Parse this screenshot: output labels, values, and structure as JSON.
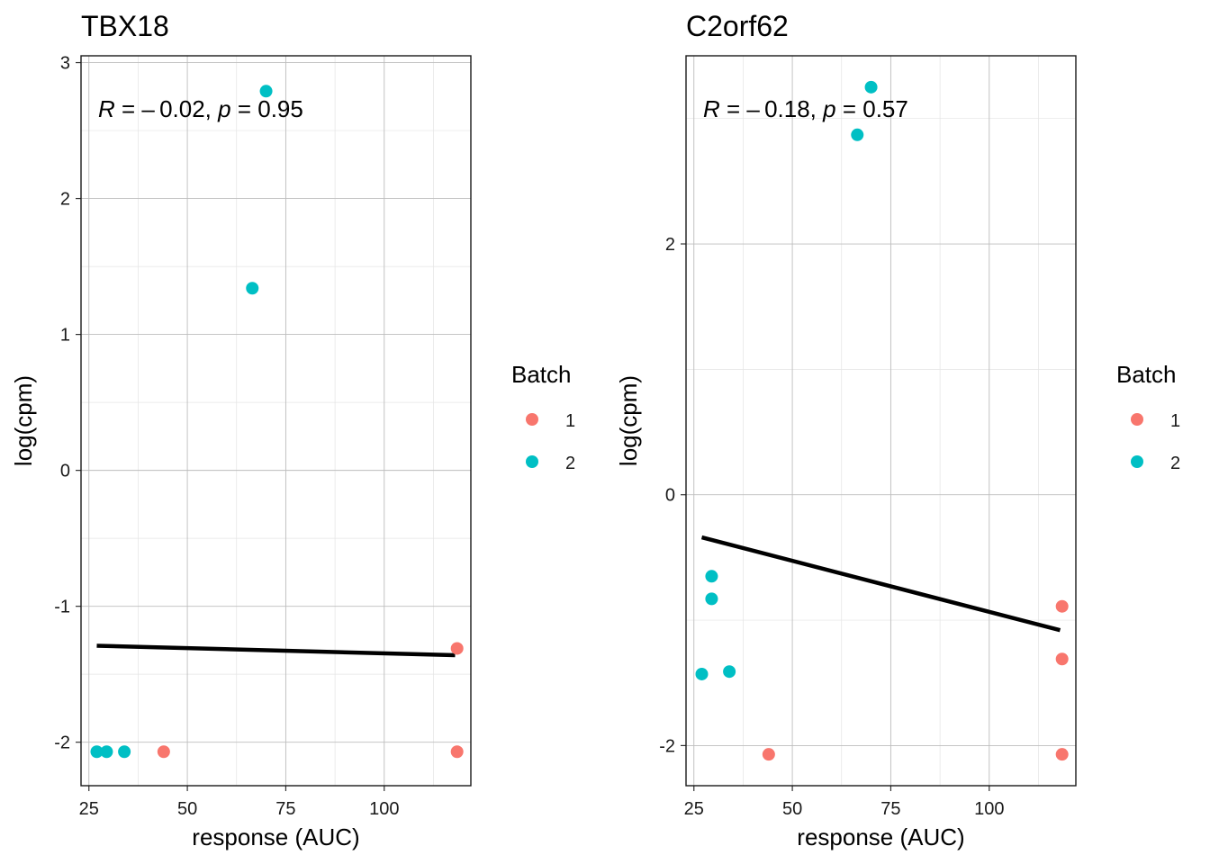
{
  "figure": {
    "colors": {
      "batch_1": "#F8766D",
      "batch_2": "#00BFC4",
      "fit_line": "#000000"
    }
  },
  "chart_data": [
    {
      "type": "scatter",
      "title": "TBX18",
      "xlabel": "response (AUC)",
      "ylabel": "log(cpm)",
      "xlim": [
        23,
        122
      ],
      "ylim": [
        -2.32,
        3.05
      ],
      "x_ticks": [
        25,
        50,
        75,
        100
      ],
      "x_tick_labels": [
        "25",
        "50",
        "75",
        "100"
      ],
      "y_ticks": [
        -2,
        -1,
        0,
        1,
        2,
        3
      ],
      "y_tick_labels": [
        "-2",
        "-1",
        "0",
        "1",
        "2",
        "3"
      ],
      "grid": true,
      "annotation": {
        "r_label": "R",
        "r_text": " = – 0.02, ",
        "p_label": "p",
        "p_text": " = 0.95"
      },
      "series": [
        {
          "name": "1",
          "color": "#F8766D",
          "points": [
            [
              44,
              -2.07
            ],
            [
              118.5,
              -2.07
            ],
            [
              118.5,
              -1.31
            ]
          ]
        },
        {
          "name": "2",
          "color": "#00BFC4",
          "points": [
            [
              27,
              -2.07
            ],
            [
              29.5,
              -2.07
            ],
            [
              34,
              -2.07
            ],
            [
              66.5,
              1.34
            ],
            [
              70,
              2.79
            ]
          ]
        }
      ],
      "fit_line": {
        "x": [
          27,
          118
        ],
        "y": [
          -1.29,
          -1.36
        ]
      },
      "legend": {
        "title": "Batch",
        "position": "right",
        "entries": [
          "1",
          "2"
        ]
      }
    },
    {
      "type": "scatter",
      "title": "C2orf62",
      "xlabel": "response (AUC)",
      "ylabel": "log(cpm)",
      "xlim": [
        23,
        122
      ],
      "ylim": [
        -2.32,
        3.5
      ],
      "x_ticks": [
        25,
        50,
        75,
        100
      ],
      "x_tick_labels": [
        "25",
        "50",
        "75",
        "100"
      ],
      "y_ticks": [
        -2,
        0,
        2
      ],
      "y_tick_labels": [
        "-2",
        "0",
        "2"
      ],
      "grid": true,
      "annotation": {
        "r_label": "R",
        "r_text": " = – 0.18, ",
        "p_label": "p",
        "p_text": " = 0.57"
      },
      "series": [
        {
          "name": "1",
          "color": "#F8766D",
          "points": [
            [
              44,
              -2.07
            ],
            [
              118.5,
              -2.07
            ],
            [
              118.5,
              -1.31
            ],
            [
              118.5,
              -0.89
            ]
          ]
        },
        {
          "name": "2",
          "color": "#00BFC4",
          "points": [
            [
              27,
              -1.43
            ],
            [
              29.5,
              -0.65
            ],
            [
              29.5,
              -0.83
            ],
            [
              34,
              -1.41
            ],
            [
              66.5,
              2.87
            ],
            [
              70,
              3.25
            ]
          ]
        }
      ],
      "fit_line": {
        "x": [
          27,
          118
        ],
        "y": [
          -0.34,
          -1.08
        ]
      },
      "legend": {
        "title": "Batch",
        "position": "right",
        "entries": [
          "1",
          "2"
        ]
      }
    }
  ]
}
